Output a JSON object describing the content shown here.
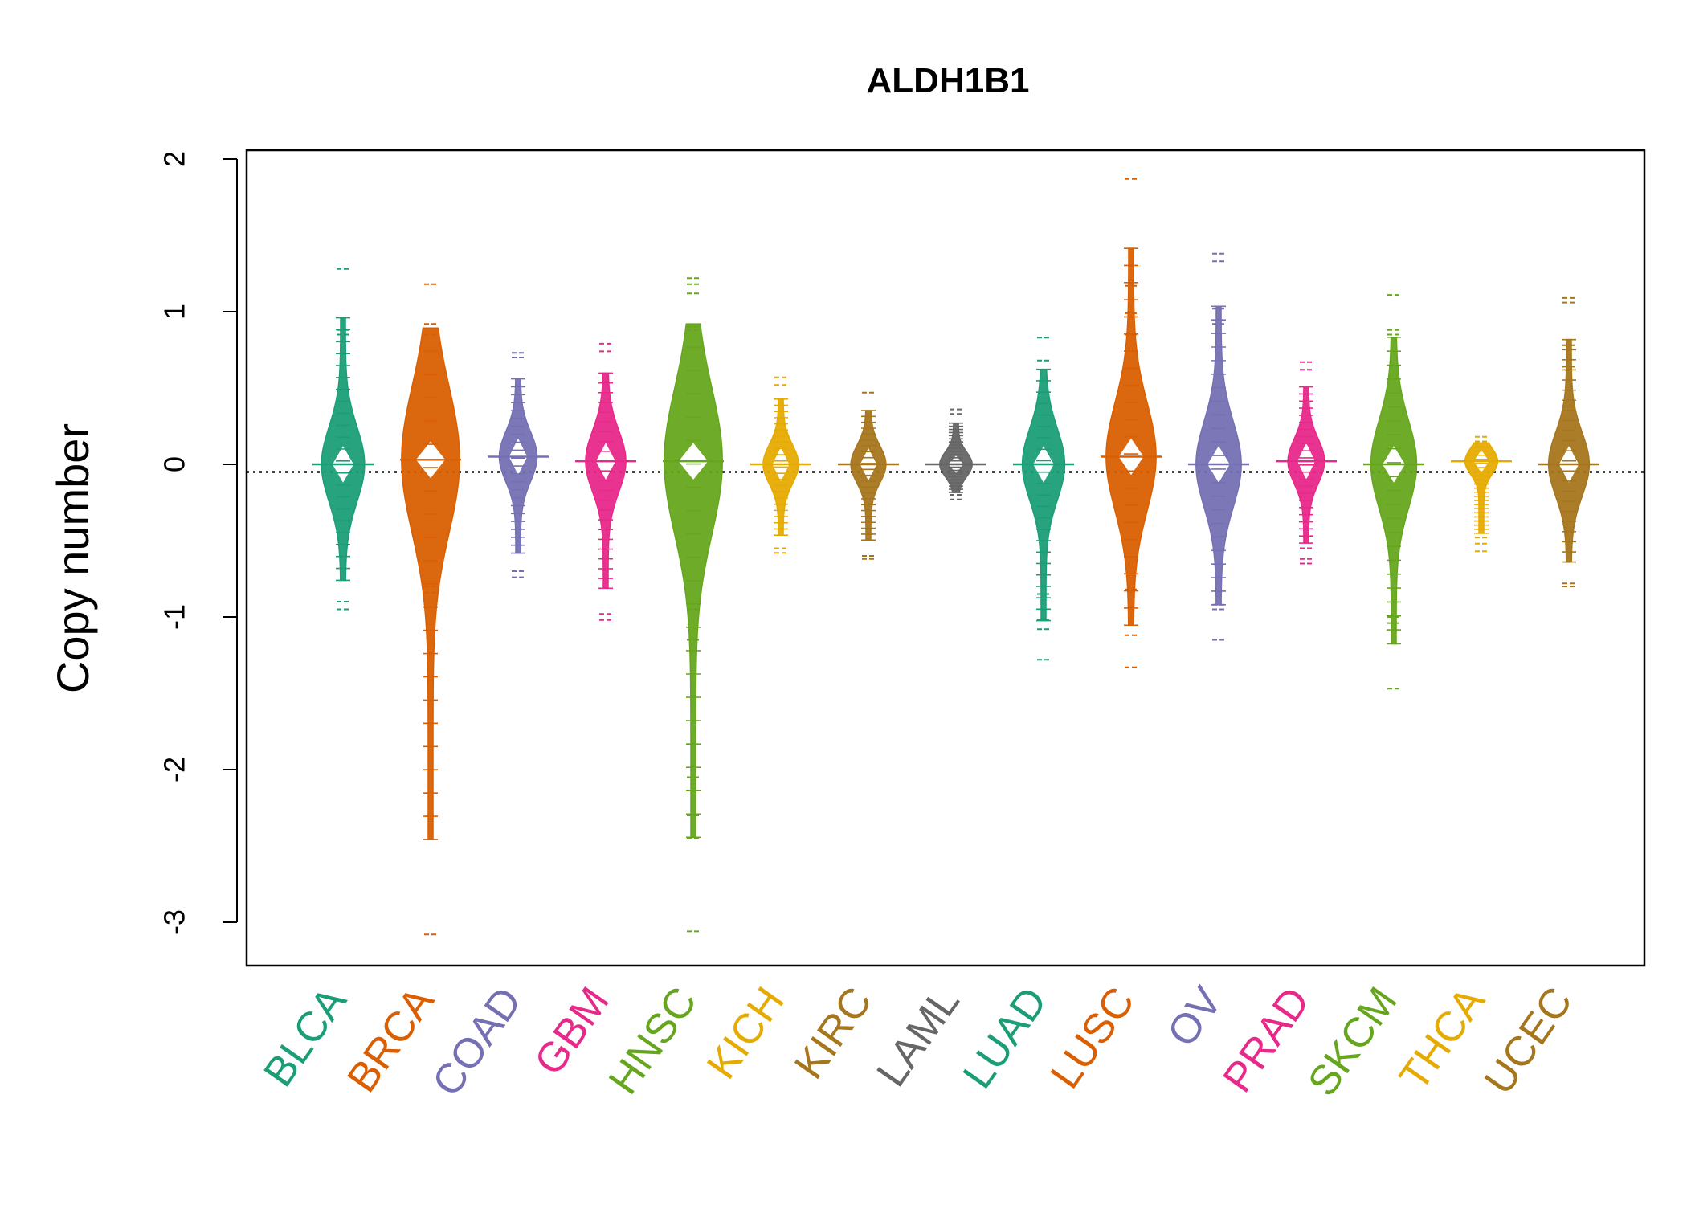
{
  "chart_data": {
    "type": "beanplot",
    "title": "ALDH1B1",
    "xlabel": "",
    "ylabel": "Copy number",
    "ylim": [
      -3.3,
      2.05
    ],
    "yticks": [
      "-3",
      "-2",
      "-1",
      "0",
      "1",
      "2"
    ],
    "reference_line": -0.05,
    "grid": false,
    "legend": "none",
    "categories": [
      "BLCA",
      "BRCA",
      "COAD",
      "GBM",
      "HNSC",
      "KICH",
      "KIRC",
      "LAML",
      "LUAD",
      "LUSC",
      "OV",
      "PRAD",
      "SKCM",
      "THCA",
      "UCEC"
    ],
    "colors": [
      "#1B9E77",
      "#D95F02",
      "#7570B3",
      "#E7298A",
      "#66A61E",
      "#E6AB02",
      "#A6761D",
      "#666666",
      "#1B9E77",
      "#D95F02",
      "#7570B3",
      "#E7298A",
      "#66A61E",
      "#E6AB02",
      "#A6761D"
    ],
    "series": [
      {
        "category": "BLCA",
        "median": 0.0,
        "min": -0.95,
        "max": 1.28,
        "outliers": [
          1.28,
          0.88,
          0.85,
          -0.9,
          -0.95
        ]
      },
      {
        "category": "BRCA",
        "median": 0.03,
        "min": -3.08,
        "max": 1.18,
        "outliers": [
          1.18,
          0.92,
          0.85,
          -0.8,
          -0.84,
          -3.08
        ]
      },
      {
        "category": "COAD",
        "median": 0.05,
        "min": -0.74,
        "max": 0.73,
        "outliers": [
          0.73,
          0.7,
          -0.7,
          -0.74
        ]
      },
      {
        "category": "GBM",
        "median": 0.02,
        "min": -1.02,
        "max": 0.79,
        "outliers": [
          0.79,
          0.74,
          -0.98,
          -1.02
        ]
      },
      {
        "category": "HNSC",
        "median": 0.02,
        "min": -3.06,
        "max": 1.22,
        "outliers": [
          1.22,
          1.18,
          1.12,
          0.9,
          0.88,
          -0.95,
          -1.15,
          -2.05,
          -2.3,
          -2.45,
          -3.06
        ]
      },
      {
        "category": "KICH",
        "median": 0.0,
        "min": -0.58,
        "max": 0.57,
        "outliers": [
          0.57,
          0.52,
          -0.55,
          -0.58
        ]
      },
      {
        "category": "KIRC",
        "median": 0.0,
        "min": -0.62,
        "max": 0.47,
        "outliers": [
          0.47,
          -0.6,
          -0.62
        ]
      },
      {
        "category": "LAML",
        "median": 0.0,
        "min": -0.23,
        "max": 0.36,
        "outliers": [
          0.36,
          0.33,
          -0.2,
          -0.23
        ]
      },
      {
        "category": "LUAD",
        "median": 0.0,
        "min": -1.28,
        "max": 0.83,
        "outliers": [
          0.83,
          0.68,
          -0.85,
          -1.02,
          -1.08,
          -1.28
        ]
      },
      {
        "category": "LUSC",
        "median": 0.05,
        "min": -1.33,
        "max": 1.87,
        "outliers": [
          1.87,
          1.17,
          0.99,
          0.85,
          -0.82,
          -1.12,
          -1.33
        ]
      },
      {
        "category": "OV",
        "median": 0.0,
        "min": -1.15,
        "max": 1.38,
        "outliers": [
          1.38,
          1.33,
          1.02,
          0.92,
          -0.92,
          -0.95,
          -1.15
        ]
      },
      {
        "category": "PRAD",
        "median": 0.02,
        "min": -0.65,
        "max": 0.67,
        "outliers": [
          0.67,
          0.62,
          -0.55,
          -0.62,
          -0.65
        ]
      },
      {
        "category": "SKCM",
        "median": 0.0,
        "min": -1.47,
        "max": 1.11,
        "outliers": [
          1.11,
          0.88,
          0.85,
          -1.0,
          -1.04,
          -1.47
        ]
      },
      {
        "category": "THCA",
        "median": 0.02,
        "min": -0.57,
        "max": 0.18,
        "outliers": [
          0.18,
          0.15,
          -0.48,
          -0.52,
          -0.57
        ]
      },
      {
        "category": "UCEC",
        "median": 0.0,
        "min": -0.8,
        "max": 1.09,
        "outliers": [
          1.09,
          1.06,
          0.78,
          0.64,
          -0.78,
          -0.8
        ]
      }
    ]
  }
}
